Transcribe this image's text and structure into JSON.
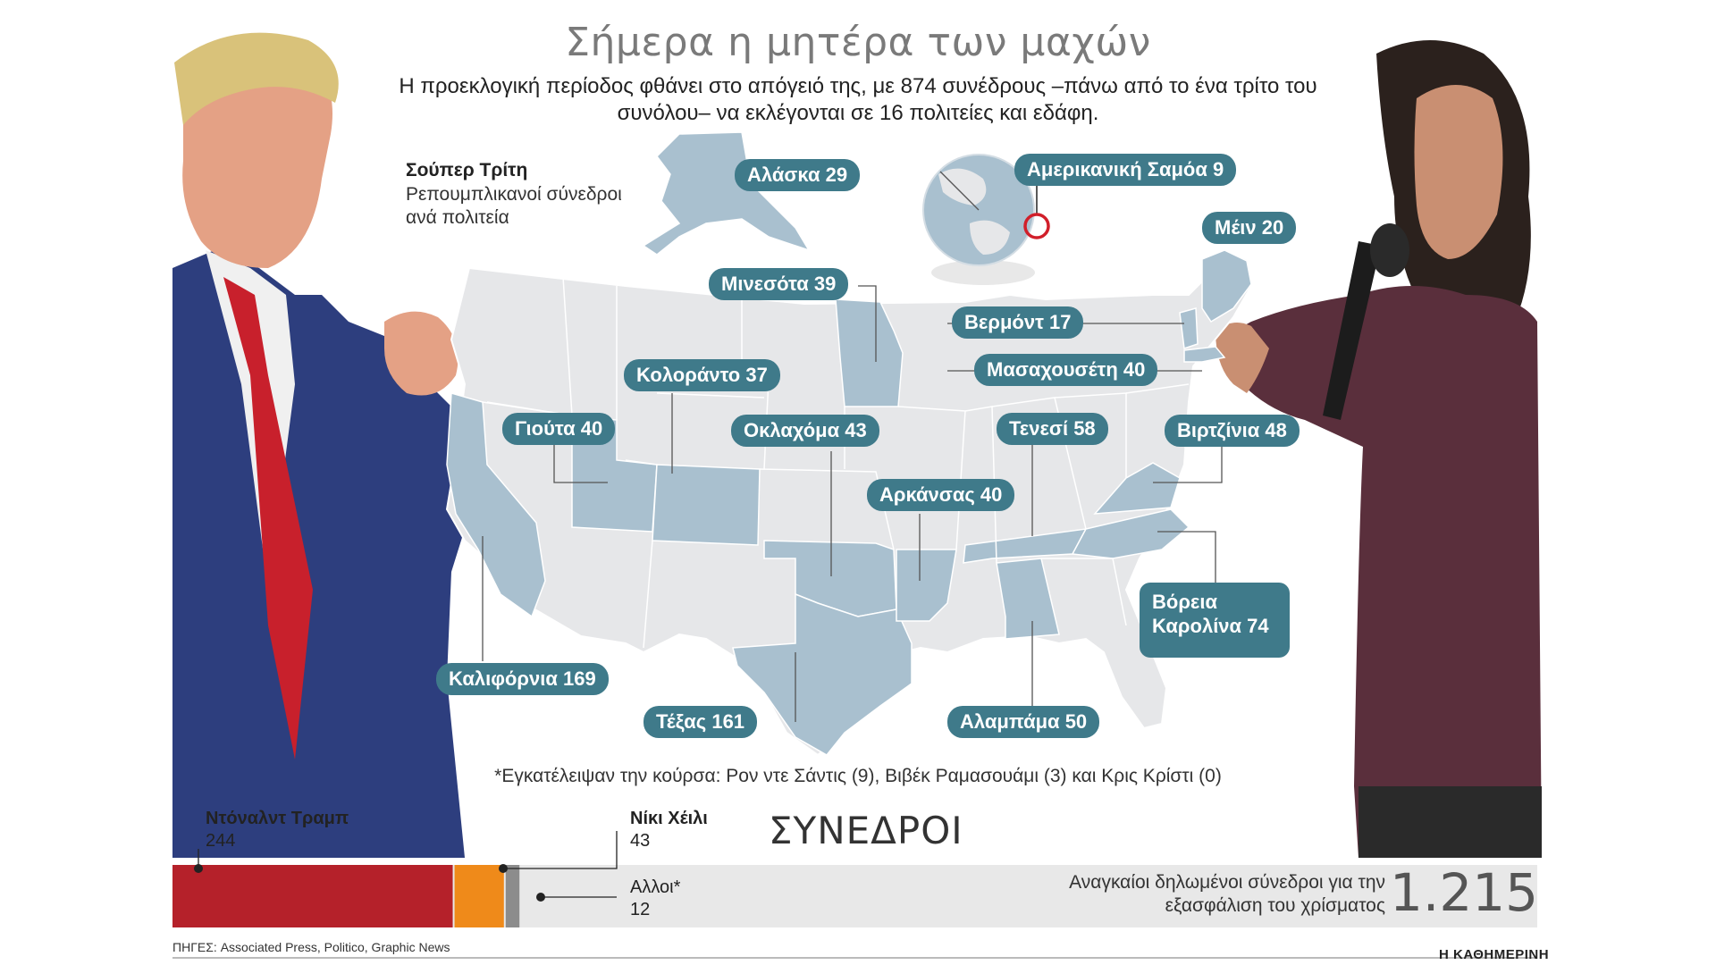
{
  "header": {
    "title": "Σήμερα η μητέρα των μαχών",
    "subtitle": "Η προεκλογική περίοδος φθάνει στο απόγειό της, με 874 συνέδρους –πάνω από το ένα τρίτο του συνόλου– να εκλέγονται σε 16 πολιτείες και εδάφη."
  },
  "legend": {
    "title": "Σούπερ Τρίτη",
    "subtitle": "Ρεπουμπλικανοί σύνεδροι ανά πολιτεία"
  },
  "states": [
    {
      "label": "Αλάσκα 29"
    },
    {
      "label": "Αμερικανική Σαμόα 9"
    },
    {
      "label": "Μέιν 20"
    },
    {
      "label": "Μινεσότα 39"
    },
    {
      "label": "Βερμόντ 17"
    },
    {
      "label": "Κολοράντο 37"
    },
    {
      "label": "Μασαχουσέτη 40"
    },
    {
      "label": "Γιούτα 40"
    },
    {
      "label": "Οκλαχόμα 43"
    },
    {
      "label": "Τενεσί 58"
    },
    {
      "label": "Βιρτζίνια 48"
    },
    {
      "label": "Αρκάνσας 40"
    },
    {
      "label": "Βόρεια Καρολίνα 74"
    },
    {
      "label": "Καλιφόρνια 169"
    },
    {
      "label": "Τέξας 161"
    },
    {
      "label": "Αλαμπάμα 50"
    }
  ],
  "footnote": "*Εγκατέλειψαν την κούρσα: Ρον ντε Σάντις (9), Βιβέκ Ραμασουάμι (3) και Κρις Κρίστι (0)",
  "delegates": {
    "label": "ΣΥΝΕΔΡΟΙ",
    "total": 1215,
    "candidates": [
      {
        "name": "Ντόναλντ Τραμπ",
        "value_text": "244",
        "value": 244,
        "color": "#b5212a"
      },
      {
        "name": "Νίκι Χέιλι",
        "value_text": "43",
        "value": 43,
        "color": "#ef8a1a"
      },
      {
        "name": "Αλλοι*",
        "value_text": "12",
        "value": 12,
        "color": "#8c8c8c"
      }
    ],
    "required_text": "Αναγκαίοι δηλωμένοι σύνεδροι για την εξασφάλιση του χρίσματος",
    "required_number": "1.215"
  },
  "colors": {
    "pill": "#3f7a8a",
    "state_highlight": "#a9c0cf",
    "state_base": "#e6e7e9",
    "bar_background": "#e8e8e8"
  },
  "source": "ΠΗΓΕΣ: Associated Press, Politico, Graphic News",
  "brand": "Η ΚΑΘΗΜΕΡΙΝΗ"
}
